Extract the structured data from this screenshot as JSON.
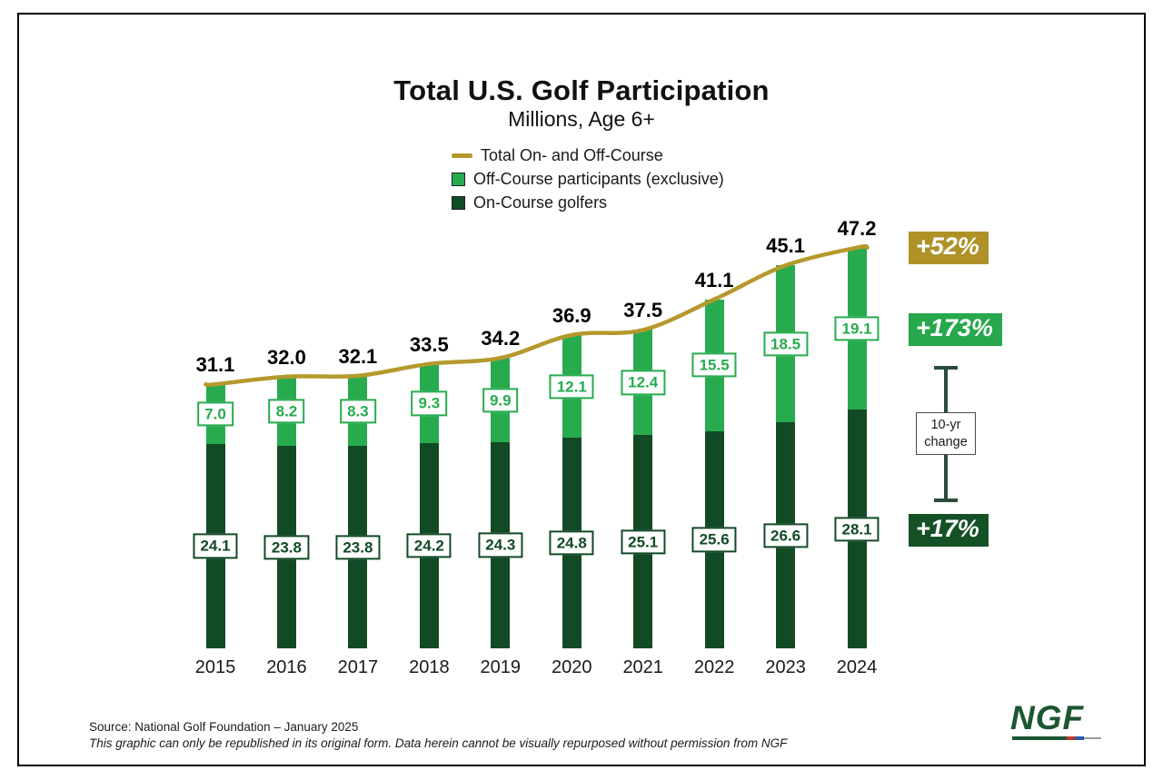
{
  "title": "Total U.S. Golf Participation",
  "subtitle": "Millions, Age 6+",
  "legend": [
    {
      "label": "Total On- and Off-Course",
      "swatch": "line",
      "color": "#B5992C"
    },
    {
      "label": "Off-Course participants (exclusive)",
      "swatch": "square",
      "color": "#27AB4E"
    },
    {
      "label": "On-Course golfers",
      "swatch": "square",
      "color": "#124A26"
    }
  ],
  "chart_data": {
    "type": "bar",
    "subtype": "stacked-bars-with-total-line",
    "categories": [
      "2015",
      "2016",
      "2017",
      "2018",
      "2019",
      "2020",
      "2021",
      "2022",
      "2023",
      "2024"
    ],
    "series": [
      {
        "name": "On-Course golfers",
        "render": "bar-stack-bottom",
        "color": "#124A26",
        "values": [
          24.1,
          23.8,
          23.8,
          24.2,
          24.3,
          24.8,
          25.1,
          25.6,
          26.6,
          28.1
        ],
        "labels": [
          "24.1",
          "23.8",
          "23.8",
          "24.2",
          "24.3",
          "24.8",
          "25.1",
          "25.6",
          "26.6",
          "28.1"
        ]
      },
      {
        "name": "Off-Course participants (exclusive)",
        "render": "bar-stack-top",
        "color": "#27AB4E",
        "values": [
          7.0,
          8.2,
          8.3,
          9.3,
          9.9,
          12.1,
          12.4,
          15.5,
          18.5,
          19.1
        ],
        "labels": [
          "7.0",
          "8.2",
          "8.3",
          "9.3",
          "9.9",
          "12.1",
          "12.4",
          "15.5",
          "18.5",
          "19.1"
        ]
      },
      {
        "name": "Total On- and Off-Course",
        "render": "line",
        "color": "#B5992C",
        "values": [
          31.1,
          32.0,
          32.1,
          33.5,
          34.2,
          36.9,
          37.5,
          41.1,
          45.1,
          47.2
        ],
        "labels": [
          "31.1",
          "32.0",
          "32.1",
          "33.5",
          "34.2",
          "36.9",
          "37.5",
          "41.1",
          "45.1",
          "47.2"
        ]
      }
    ],
    "title": "Total U.S. Golf Participation",
    "xlabel": "",
    "ylabel": "Millions, Age 6+",
    "ylim": [
      0,
      50
    ],
    "grid": false,
    "legend_position": "top"
  },
  "annotations": {
    "total_change": "+52%",
    "total_change_color": "#AE9228",
    "off_change": "+173%",
    "off_change_color": "#27A84C",
    "on_change": "+17%",
    "on_change_color": "#145126",
    "bracket_line1": "10-yr",
    "bracket_line2": "change",
    "bracket_color": "#2C4C3B"
  },
  "footer": {
    "source": "Source: National Golf Foundation – January 2025",
    "disclaimer": "This graphic can only be republished in its original form. Data herein cannot be visually repurposed without permission from NGF",
    "logo_text": "NGF"
  }
}
